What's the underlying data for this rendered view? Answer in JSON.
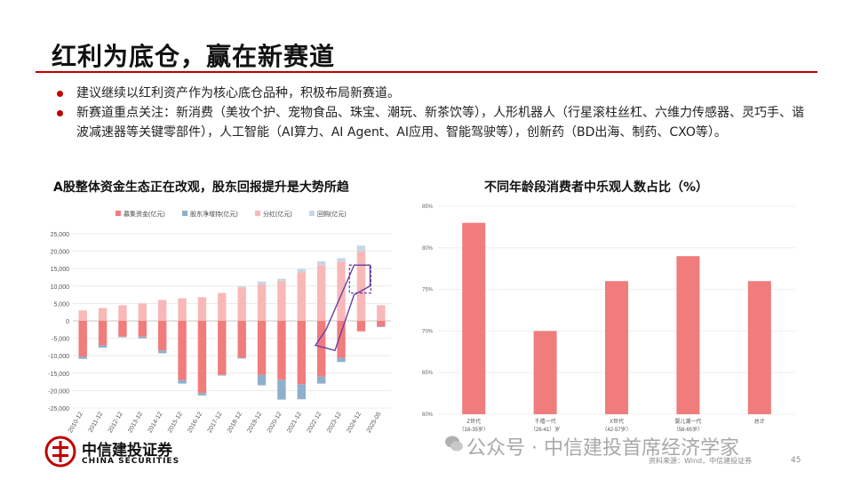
{
  "header": {
    "title": "红利为底仓，赢在新赛道"
  },
  "bullets": [
    "建议继续以红利资产作为核心底仓品种，积极布局新赛道。",
    "新赛道重点关注：新消费（美妆个护、宠物食品、珠宝、潮玩、新茶饮等），人形机器人（行星滚柱丝杠、六维力传感器、灵巧手、谐波减速器等关键零部件），人工智能（AI算力、AI Agent、AI应用、智能驾驶等），创新药（BD出海、制药、CXO等）。"
  ],
  "colors": {
    "accent": "#c00000",
    "raise": "#f07c7c",
    "repurchase_net": "#8fb0cc",
    "dividend": "#f9b8b8",
    "buyback": "#c5d6e6",
    "arrow": "#6b3fa0"
  },
  "chart_data": [
    {
      "type": "bar",
      "title": "A股整体资金生态正在改观，股东回报提升是大势所趋",
      "legend": [
        "募集资金(亿元)",
        "股东净增持(亿元)",
        "分红(亿元)",
        "回购(亿元)"
      ],
      "legend_position": "top",
      "categories": [
        "2010-12",
        "2011-12",
        "2012-12",
        "2013-12",
        "2014-12",
        "2015-12",
        "2016-12",
        "2017-12",
        "2018-12",
        "2019-12",
        "2020-12",
        "2021-12",
        "2022-12",
        "2023-12",
        "2024-12",
        "2025-05"
      ],
      "series": [
        {
          "name": "分红(亿元)",
          "values": [
            3000,
            3700,
            4500,
            5000,
            6000,
            6500,
            6800,
            8000,
            9600,
            10500,
            11500,
            13900,
            16000,
            17000,
            20000,
            4500
          ]
        },
        {
          "name": "回购(亿元)",
          "values": [
            0,
            0,
            0,
            0,
            0,
            0,
            0,
            0,
            300,
            800,
            600,
            1000,
            1100,
            1000,
            1600,
            0
          ]
        },
        {
          "name": "募集资金(亿元)",
          "values": [
            -10300,
            -7000,
            -4500,
            -4500,
            -8500,
            -17000,
            -20700,
            -15500,
            -10600,
            -15500,
            -16900,
            -18200,
            -16000,
            -10600,
            -3000,
            -1600
          ]
        },
        {
          "name": "股东净增持(亿元)",
          "values": [
            -600,
            -700,
            -200,
            -500,
            -800,
            -1000,
            -700,
            -200,
            -200,
            -3000,
            -5700,
            -4300,
            -2000,
            -1200,
            0,
            -200
          ]
        }
      ],
      "ylim": [
        -25000,
        25000
      ],
      "yticks": [
        -25000,
        -20000,
        -15000,
        -10000,
        -5000,
        0,
        5000,
        10000,
        15000,
        20000,
        25000
      ],
      "ytick_labels": [
        "-25,000",
        "-20,000",
        "-15,000",
        "-10,000",
        "-5,000",
        "0",
        "5,000",
        "10,000",
        "15,000",
        "20,000",
        "25,000"
      ],
      "grid": true
    },
    {
      "type": "bar",
      "title": "不同年龄段消费者中乐观人数占比（%）",
      "categories": [
        "Z世代",
        "千禧一代",
        "X世代",
        "婴儿潮一代",
        "总计"
      ],
      "category_sublabels": [
        "（18-35岁）",
        "（26-41）岁",
        "（42-57岁）",
        "（58-65岁）",
        ""
      ],
      "values": [
        83,
        70,
        76,
        79,
        76
      ],
      "ylim": [
        60,
        85
      ],
      "yticks": [
        60,
        65,
        70,
        75,
        80,
        85
      ],
      "ytick_labels": [
        "60%",
        "65%",
        "70%",
        "75%",
        "80%",
        "85%"
      ],
      "grid": true
    }
  ],
  "footer": {
    "brand_cn": "中信建投证券",
    "brand_en": "CHINA SECURITIES",
    "watermark": "公众号 · 中信建投首席经济学家",
    "source": "资料来源：Wind，中信建投证券",
    "page": "45"
  }
}
